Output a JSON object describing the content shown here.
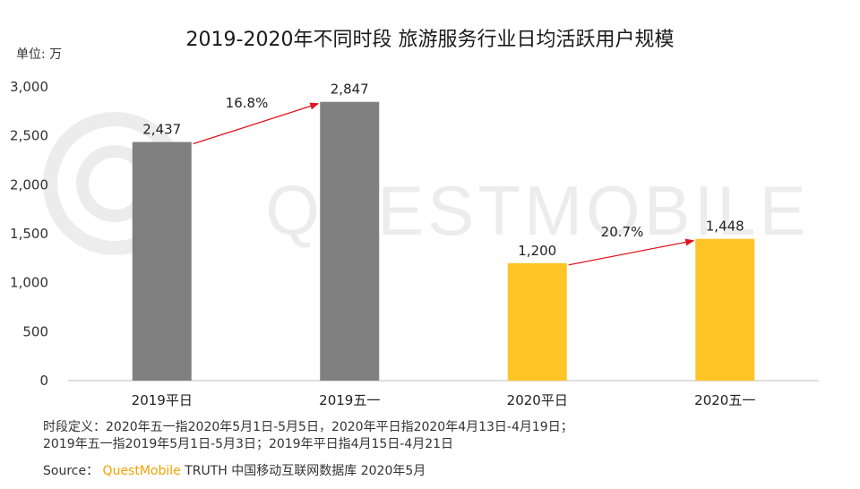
{
  "chart_data": {
    "type": "bar",
    "title": "2019-2020年不同时段 旅游服务行业日均活跃用户规模",
    "unit_label": "单位: 万",
    "categories": [
      "2019平日",
      "2019五一",
      "2020平日",
      "2020五一"
    ],
    "values": [
      2437,
      2847,
      1200,
      1448
    ],
    "value_labels": [
      "2,437",
      "2,847",
      "1,200",
      "1,448"
    ],
    "bar_colors": [
      "#808080",
      "#808080",
      "#FFC526",
      "#FFC526"
    ],
    "ylim": [
      0,
      3000
    ],
    "yticks": [
      0,
      500,
      1000,
      1500,
      2000,
      2500,
      3000
    ],
    "ytick_labels": [
      "0",
      "500",
      "1,000",
      "1,500",
      "2,000",
      "2,500",
      "3,000"
    ],
    "growth": [
      {
        "from": 0,
        "to": 1,
        "label": "16.8%"
      },
      {
        "from": 2,
        "to": 3,
        "label": "20.7%"
      }
    ],
    "arrow_color": "#E0141E",
    "grid": false
  },
  "watermark": "QUESTMOBILE",
  "footnote": {
    "line1": "时段定义：2020年五一指2020年5月1日-5月5日，2020年平日指2020年4月13日-4月19日；",
    "line2": "2019年五一指2019年5月1日-5月3日；2019年平日指4月15日-4月21日"
  },
  "source": {
    "prefix": "Source：",
    "brand": "QuestMobile",
    "rest": "TRUTH 中国移动互联网数据库 2020年5月"
  }
}
